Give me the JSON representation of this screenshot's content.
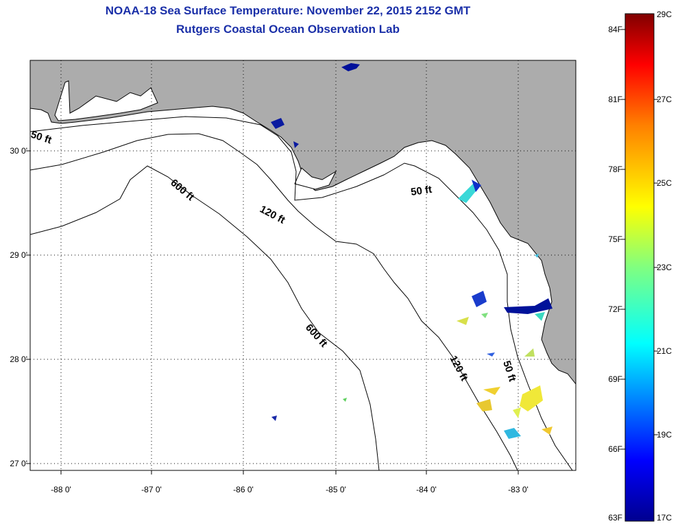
{
  "title": "NOAA-18 Sea Surface Temperature:  November 22, 2015 2152 GMT",
  "subtitle": "Rutgers Coastal Ocean Observation Lab",
  "map": {
    "latitude_ticks": [
      "30 0'",
      "29 0'",
      "28 0'",
      "27 0'"
    ],
    "longitude_ticks": [
      "-88 0'",
      "-87 0'",
      "-86 0'",
      "-85 0'",
      "-84 0'",
      "-83 0'"
    ],
    "contour_labels": [
      "50 ft",
      "50 ft",
      "50 ft",
      "120 ft",
      "120 ft",
      "600 ft",
      "600 ft"
    ],
    "land_color": "#acacac",
    "water_color": "#ffffff"
  },
  "colorbar": {
    "fahrenheit_labels": [
      "84F",
      "81F",
      "78F",
      "75F",
      "72F",
      "69F",
      "66F",
      "63F"
    ],
    "celsius_labels": [
      "29C",
      "27C",
      "25C",
      "23C",
      "21C",
      "19C",
      "17C"
    ],
    "colors": [
      "#800000",
      "#ff0000",
      "#ff8000",
      "#ffff00",
      "#80ff80",
      "#00ffff",
      "#0080ff",
      "#0000ff",
      "#00008f"
    ]
  }
}
